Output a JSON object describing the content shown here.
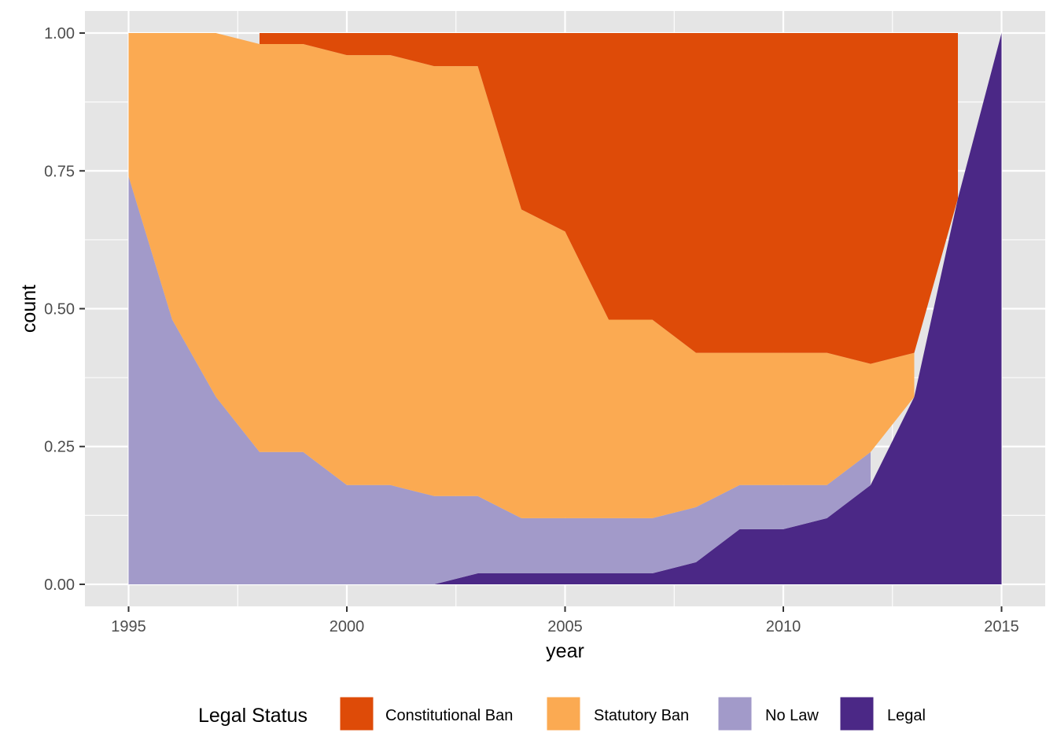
{
  "chart_data": {
    "type": "area",
    "stacking": "stacked-fill",
    "xlabel": "year",
    "ylabel": "count",
    "xlim": [
      1994,
      2016
    ],
    "ylim": [
      -0.04,
      1.04
    ],
    "x_ticks": [
      1995,
      2000,
      2005,
      2010,
      2015
    ],
    "x_tick_labels": [
      "1995",
      "2000",
      "2005",
      "2010",
      "2015"
    ],
    "y_ticks": [
      0,
      0.25,
      0.5,
      0.75,
      1.0
    ],
    "y_tick_labels": [
      "0.00",
      "0.25",
      "0.50",
      "0.75",
      "1.00"
    ],
    "grid": true,
    "background": "#e5e5e5",
    "legend": {
      "title": "Legal Status",
      "position": "bottom"
    },
    "series": [
      {
        "name": "Constitutional Ban",
        "color": "#de4b08",
        "points": [
          [
            1998,
            0.02
          ],
          [
            1999,
            0.02
          ],
          [
            2000,
            0.04
          ],
          [
            2001,
            0.04
          ],
          [
            2002,
            0.06
          ],
          [
            2003,
            0.06
          ],
          [
            2004,
            0.32
          ],
          [
            2005,
            0.36
          ],
          [
            2006,
            0.52
          ],
          [
            2007,
            0.52
          ],
          [
            2008,
            0.58
          ],
          [
            2009,
            0.58
          ],
          [
            2010,
            0.58
          ],
          [
            2011,
            0.58
          ],
          [
            2012,
            0.6
          ],
          [
            2013,
            0.58
          ],
          [
            2014,
            0.3
          ]
        ]
      },
      {
        "name": "Statutory Ban",
        "color": "#fbaa52",
        "points": [
          [
            1995,
            0.26
          ],
          [
            1996,
            0.52
          ],
          [
            1997,
            0.66
          ],
          [
            1998,
            0.74
          ],
          [
            1999,
            0.74
          ],
          [
            2000,
            0.78
          ],
          [
            2001,
            0.78
          ],
          [
            2002,
            0.78
          ],
          [
            2003,
            0.78
          ],
          [
            2004,
            0.56
          ],
          [
            2005,
            0.52
          ],
          [
            2006,
            0.36
          ],
          [
            2007,
            0.36
          ],
          [
            2008,
            0.28
          ],
          [
            2009,
            0.24
          ],
          [
            2010,
            0.24
          ],
          [
            2011,
            0.24
          ],
          [
            2012,
            0.16
          ],
          [
            2013,
            0.08
          ]
        ]
      },
      {
        "name": "No Law",
        "color": "#a29ac9",
        "points": [
          [
            1995,
            0.74
          ],
          [
            1996,
            0.48
          ],
          [
            1997,
            0.34
          ],
          [
            1998,
            0.24
          ],
          [
            1999,
            0.24
          ],
          [
            2000,
            0.18
          ],
          [
            2001,
            0.18
          ],
          [
            2002,
            0.16
          ],
          [
            2003,
            0.14
          ],
          [
            2004,
            0.1
          ],
          [
            2005,
            0.1
          ],
          [
            2006,
            0.1
          ],
          [
            2007,
            0.1
          ],
          [
            2008,
            0.1
          ],
          [
            2009,
            0.08
          ],
          [
            2010,
            0.08
          ],
          [
            2011,
            0.06
          ],
          [
            2012,
            0.06
          ]
        ]
      },
      {
        "name": "Legal",
        "color": "#4b2886",
        "points": [
          [
            2002,
            0.0
          ],
          [
            2003,
            0.02
          ],
          [
            2004,
            0.02
          ],
          [
            2005,
            0.02
          ],
          [
            2006,
            0.02
          ],
          [
            2007,
            0.02
          ],
          [
            2008,
            0.04
          ],
          [
            2009,
            0.1
          ],
          [
            2010,
            0.1
          ],
          [
            2011,
            0.12
          ],
          [
            2012,
            0.18
          ],
          [
            2013,
            0.34
          ],
          [
            2014,
            0.7
          ],
          [
            2015,
            1.0
          ]
        ]
      }
    ]
  }
}
